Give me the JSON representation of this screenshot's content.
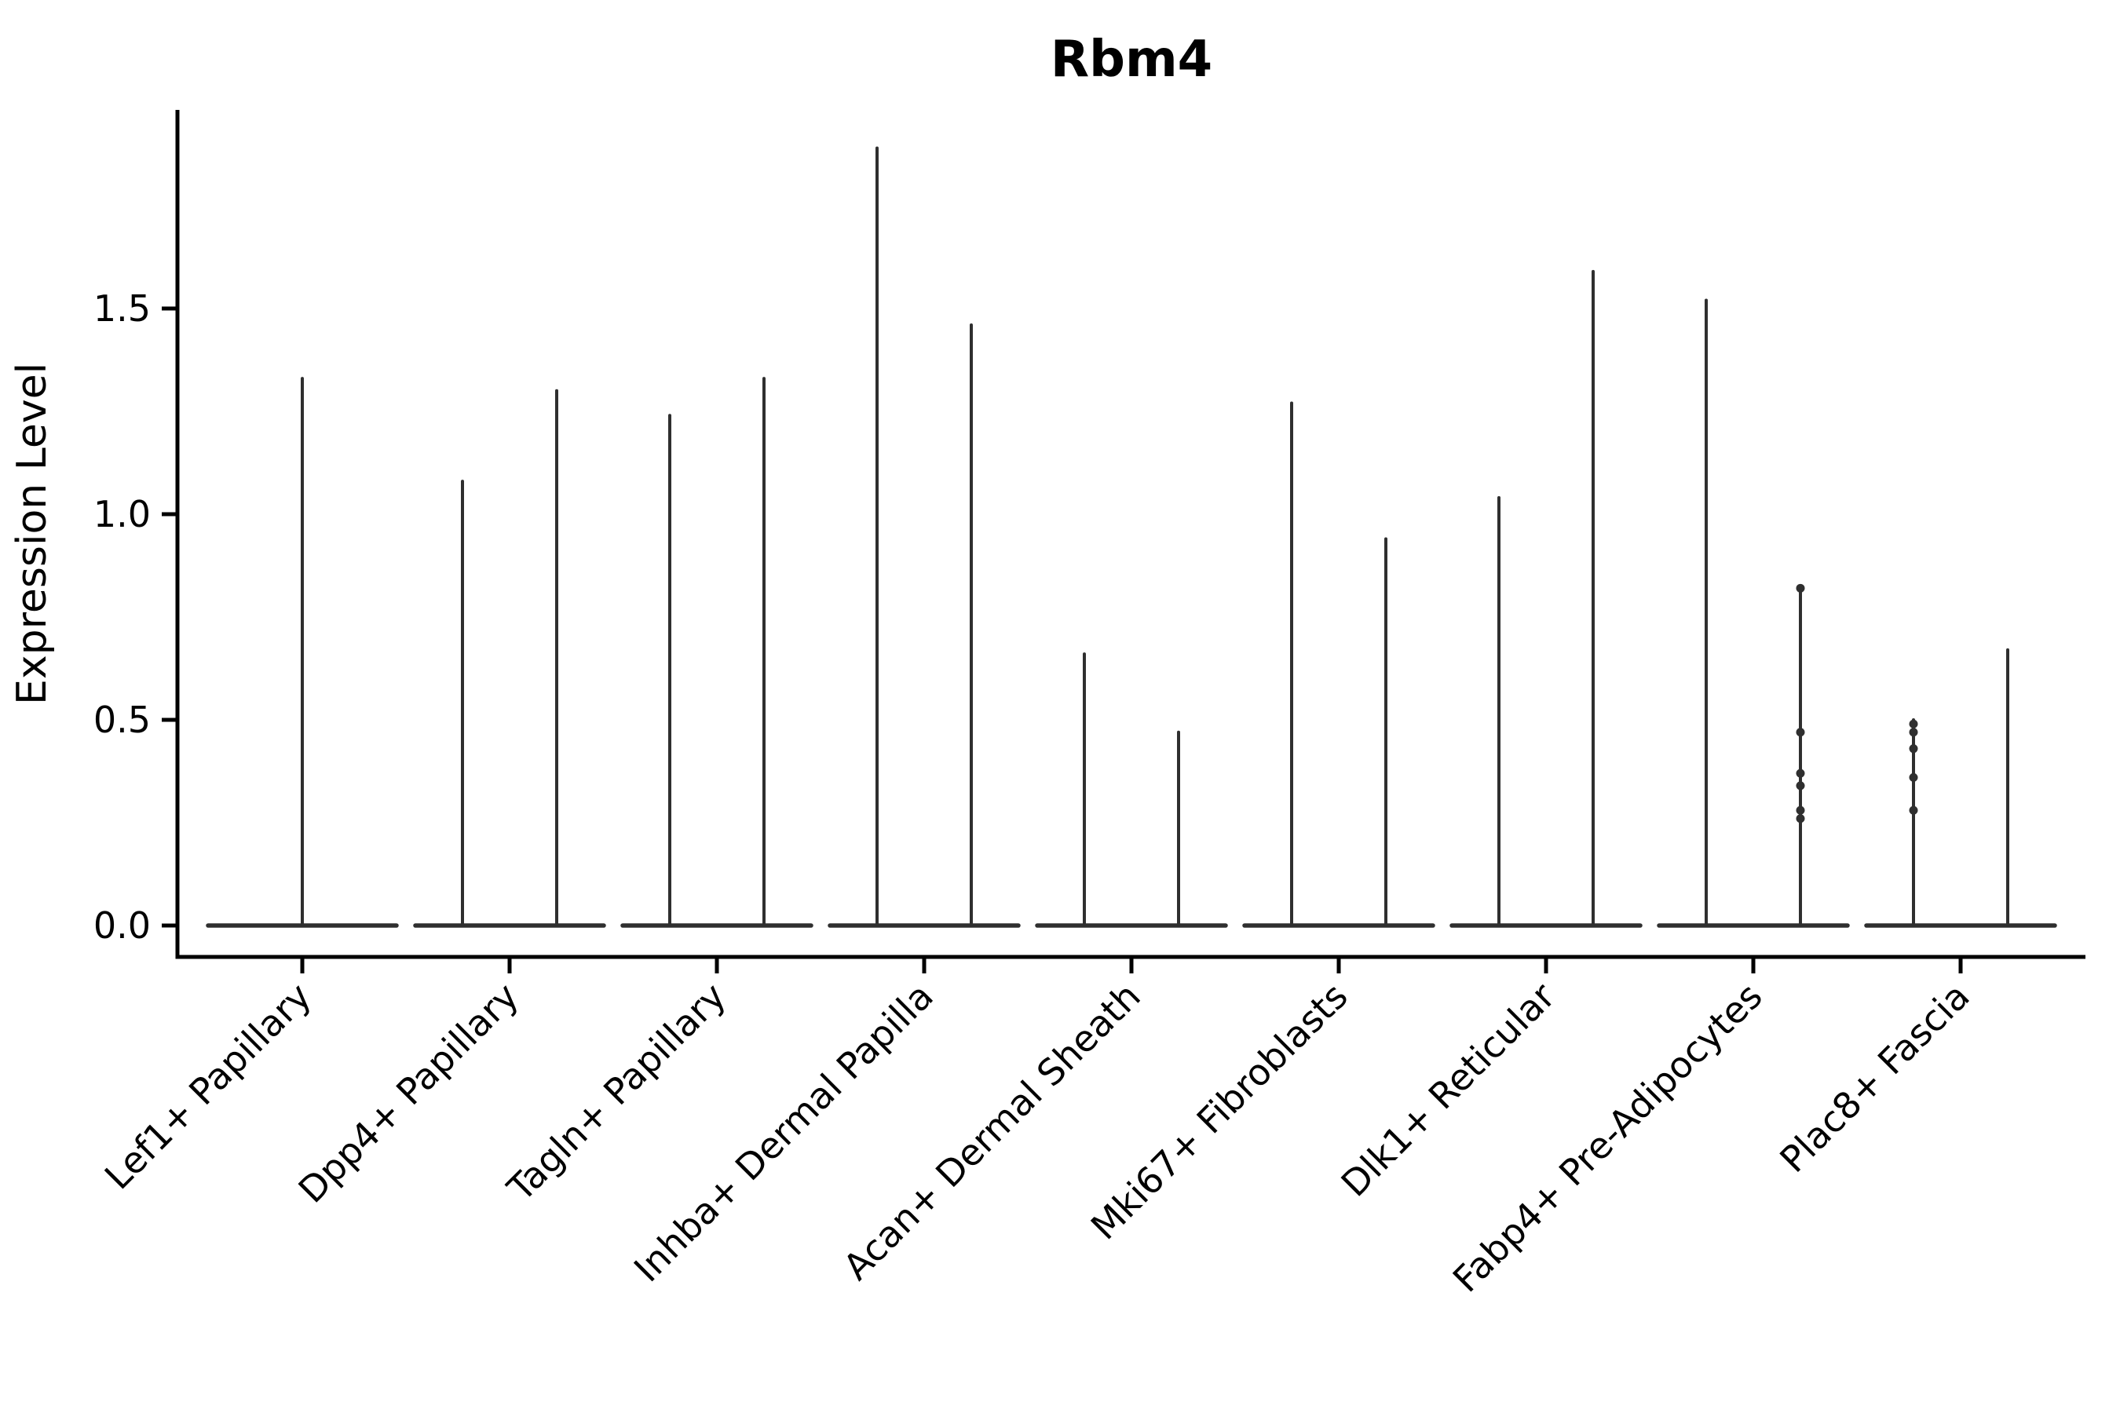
{
  "chart_data": {
    "type": "violin",
    "title": "Rbm4",
    "ylabel": "Expression Level",
    "xlabel": "",
    "ytick_labels": [
      "0.0",
      "0.5",
      "1.0",
      "1.5"
    ],
    "ytick_values": [
      0.0,
      0.5,
      1.0,
      1.5
    ],
    "ylim": [
      -0.08,
      1.98
    ],
    "grid": false,
    "legend": "none",
    "categories": [
      "Lef1+ Papillary",
      "Dpp4+ Papillary",
      "Tagln+ Papillary",
      "Inhba+ Dermal Papilla",
      "Acan+ Dermal Sheath",
      "Mki67+ Fibroblasts",
      "Dlk1+ Reticular",
      "Fabp4+ Pre-Adipocytes",
      "Plac8+ Fascia"
    ],
    "violins": [
      [
        {
          "side": 0,
          "max": 1.33,
          "points": []
        }
      ],
      [
        {
          "side": -1,
          "max": 1.08,
          "points": []
        },
        {
          "side": 1,
          "max": 1.3,
          "points": []
        }
      ],
      [
        {
          "side": -1,
          "max": 1.24,
          "points": []
        },
        {
          "side": 1,
          "max": 1.33,
          "points": []
        }
      ],
      [
        {
          "side": -1,
          "max": 1.89,
          "points": []
        },
        {
          "side": 1,
          "max": 1.46,
          "points": []
        }
      ],
      [
        {
          "side": -1,
          "max": 0.66,
          "points": []
        },
        {
          "side": 1,
          "max": 0.47,
          "points": []
        }
      ],
      [
        {
          "side": -1,
          "max": 1.27,
          "points": []
        },
        {
          "side": 1,
          "max": 0.94,
          "points": []
        }
      ],
      [
        {
          "side": -1,
          "max": 1.04,
          "points": []
        },
        {
          "side": 1,
          "max": 1.59,
          "points": []
        }
      ],
      [
        {
          "side": -1,
          "max": 1.52,
          "points": []
        },
        {
          "side": 1,
          "max": 0.82,
          "points": [
            0.82,
            0.47,
            0.37,
            0.34,
            0.28,
            0.26
          ]
        }
      ],
      [
        {
          "side": -1,
          "max": 0.5,
          "points": [
            0.49,
            0.47,
            0.43,
            0.36,
            0.28
          ]
        },
        {
          "side": 1,
          "max": 0.67,
          "points": []
        }
      ]
    ],
    "colors": {
      "violin_line": "#2f2f2f",
      "axis": "#000000",
      "text": "#000000",
      "background": "#ffffff"
    }
  }
}
